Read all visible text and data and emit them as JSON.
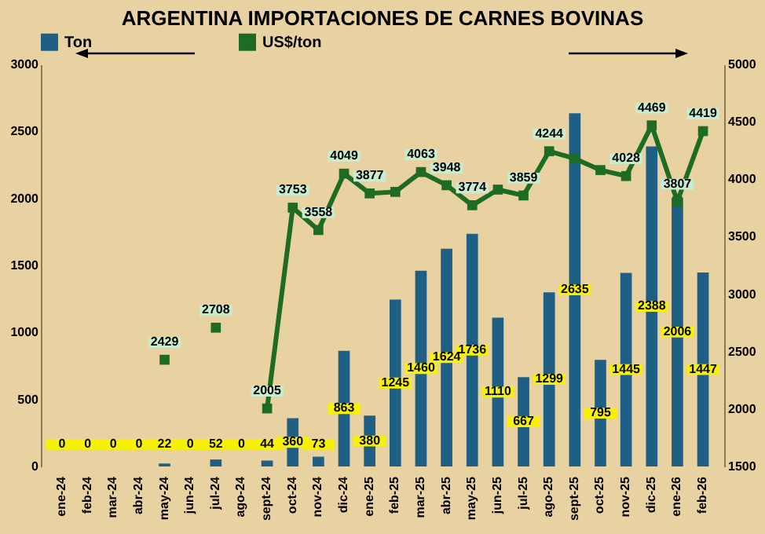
{
  "chart_data": {
    "type": "bar",
    "title": "ARGENTINA IMPORTACIONES DE CARNES BOVINAS",
    "categories": [
      "ene-24",
      "feb-24",
      "mar-24",
      "abr-24",
      "may-24",
      "jun-24",
      "jul-24",
      "ago-24",
      "sept-24",
      "oct-24",
      "nov-24",
      "dic-24",
      "ene-25",
      "feb-25",
      "mar-25",
      "abr-25",
      "may-25",
      "jun-25",
      "jul-25",
      "ago-25",
      "sept-25",
      "oct-25",
      "nov-25",
      "dic-25",
      "ene-26",
      "feb-26"
    ],
    "series": [
      {
        "name": "Ton",
        "color": "#1f5f85",
        "values": [
          0,
          0,
          0,
          0,
          22,
          0,
          52,
          0,
          44,
          360,
          73,
          863,
          380,
          1245,
          1460,
          1624,
          1736,
          1110,
          667,
          1299,
          2635,
          795,
          1445,
          2388,
          2006,
          1447
        ],
        "value_labels": [
          "0",
          "0",
          "0",
          "0",
          "22",
          "0",
          "52",
          "0",
          "44",
          "360",
          "73",
          "863",
          "380",
          "1245",
          "1460",
          "1624",
          "1736",
          "1110",
          "667",
          "1299",
          "2635",
          "795",
          "1445",
          "2388",
          "2006",
          "1447"
        ]
      },
      {
        "name": "US$/ton",
        "type": "line",
        "axis": "y2",
        "color": "#1e6b23",
        "marker": "square",
        "values": [
          null,
          null,
          null,
          null,
          2429,
          null,
          2708,
          null,
          2005,
          3753,
          3558,
          4049,
          3877,
          3890,
          4063,
          3948,
          3774,
          3910,
          3859,
          4244,
          4180,
          4080,
          4028,
          4469,
          3807,
          4419
        ],
        "value_labels": [
          null,
          null,
          null,
          null,
          "2429",
          null,
          "2708",
          null,
          "2005",
          "3753",
          "3558",
          "4049",
          "3877",
          null,
          "4063",
          "3948",
          "3774",
          null,
          "3859",
          "4244",
          null,
          null,
          "4028",
          "4469",
          "3807",
          "4419"
        ]
      }
    ],
    "ylim": [
      0,
      3000
    ],
    "yticks": [
      0,
      500,
      1000,
      1500,
      2000,
      2500,
      3000
    ],
    "y2lim": [
      1500,
      5000
    ],
    "y2ticks": [
      1500,
      2000,
      2500,
      3000,
      3500,
      4000,
      4500,
      5000
    ],
    "grid": false,
    "legend": "top"
  }
}
